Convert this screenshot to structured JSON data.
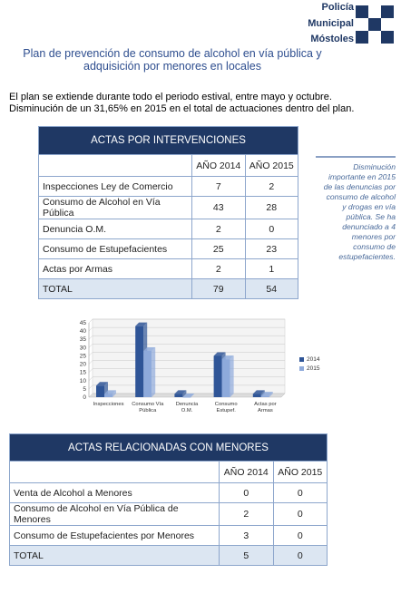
{
  "logo": {
    "line1": "Policía",
    "line2": "Municipal",
    "line3": "Móstoles"
  },
  "title": {
    "line1": "Plan de prevención de consumo de alcohol en vía pública y",
    "line2": "adquisición por menores en locales"
  },
  "intro": {
    "line1": "El plan se extiende durante todo el periodo estival, entre mayo y octubre.",
    "line2": "Disminución de un 31,65% en 2015 en el total de actuaciones dentro del plan."
  },
  "table1": {
    "title": "ACTAS POR INTERVENCIONES",
    "col1": "AÑO 2014",
    "col2": "AÑO 2015",
    "rows": [
      {
        "label": "Inspecciones Ley de Comercio",
        "v2014": "7",
        "v2015": "2"
      },
      {
        "label": "Consumo de Alcohol en Vía Pública",
        "v2014": "43",
        "v2015": "28"
      },
      {
        "label": "Denuncia O.M.",
        "v2014": "2",
        "v2015": "0"
      },
      {
        "label": "Consumo de Estupefacientes",
        "v2014": "25",
        "v2015": "23"
      },
      {
        "label": "Actas por Armas",
        "v2014": "2",
        "v2015": "1"
      }
    ],
    "total": {
      "label": "TOTAL",
      "v2014": "79",
      "v2015": "54"
    }
  },
  "sidebar": {
    "line1": "Disminución",
    "line2": "importante en 2015",
    "line3": "de las denuncias por",
    "line4": "consumo de alcohol",
    "line5": "y drogas en vía",
    "line6": "pública. Se ha",
    "line7": "denunciado a 4",
    "line8": "menores por",
    "line9": "consumo de",
    "line10": "estupefacientes."
  },
  "chart_data": {
    "type": "bar",
    "categories": [
      "Inspecciones",
      "Consumo Vía Pública",
      "Denuncia O.M.",
      "Consumo Estupef.",
      "Actas por Armas"
    ],
    "category_lines": [
      [
        "Inspecciones"
      ],
      [
        "Consumo Vía",
        "Pública"
      ],
      [
        "Denuncia",
        "O.M."
      ],
      [
        "Consumo",
        "Estupef."
      ],
      [
        "Actas por",
        "Armas"
      ]
    ],
    "series": [
      {
        "name": "2014",
        "values": [
          7,
          43,
          2,
          25,
          2
        ],
        "color": "#2f5597"
      },
      {
        "name": "2015",
        "values": [
          2,
          28,
          0,
          23,
          1
        ],
        "color": "#8eaadb"
      }
    ],
    "ylim": [
      0,
      45
    ],
    "yticks": [
      "0",
      "5",
      "10",
      "15",
      "20",
      "25",
      "30",
      "35",
      "40",
      "45"
    ],
    "grid": true,
    "legend": "right"
  },
  "table2": {
    "title": "ACTAS RELACIONADAS CON MENORES",
    "col1": "AÑO 2014",
    "col2": "AÑO 2015",
    "rows": [
      {
        "label": "Venta de Alcohol a Menores",
        "v2014": "0",
        "v2015": "0"
      },
      {
        "label": "Consumo de Alcohol en Vía Pública de Menores",
        "v2014": "2",
        "v2015": "0"
      },
      {
        "label": "Consumo de Estupefacientes por Menores",
        "v2014": "3",
        "v2015": "0"
      }
    ],
    "total": {
      "label": "TOTAL",
      "v2014": "5",
      "v2015": "0"
    }
  }
}
